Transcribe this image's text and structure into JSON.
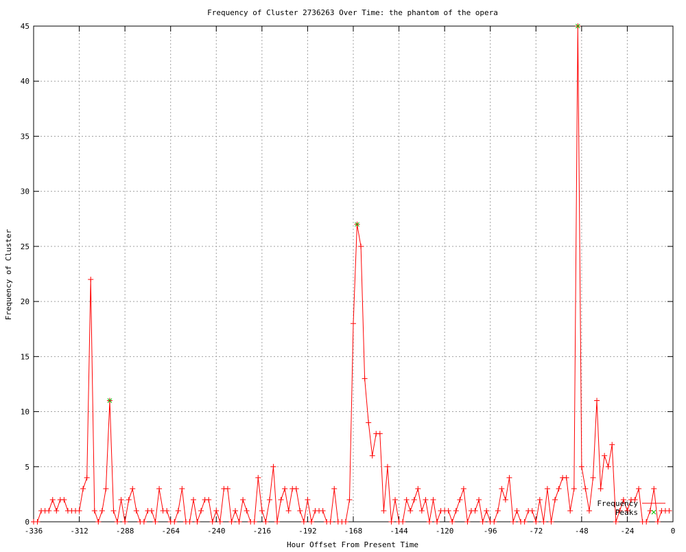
{
  "chart_data": {
    "type": "line",
    "title": "Frequency of Cluster 2736263 Over Time: the phantom of the opera",
    "xlabel": "Hour Offset From Present Time",
    "ylabel": "Frequency of Cluster",
    "xlim": [
      -336,
      0
    ],
    "ylim": [
      0,
      45
    ],
    "xticks": [
      -336,
      -312,
      -288,
      -264,
      -240,
      -216,
      -192,
      -168,
      -144,
      -120,
      -96,
      -72,
      -48,
      -24,
      0
    ],
    "yticks": [
      0,
      5,
      10,
      15,
      20,
      25,
      30,
      35,
      40,
      45
    ],
    "grid": true,
    "legend_position": "bottom-right",
    "series": [
      {
        "name": "Frequency",
        "color": "#ff0000",
        "marker": "plus",
        "x": [
          -336,
          -334,
          -332,
          -330,
          -328,
          -326,
          -324,
          -322,
          -320,
          -318,
          -316,
          -314,
          -312,
          -310,
          -308,
          -306,
          -304,
          -302,
          -300,
          -298,
          -296,
          -294,
          -292,
          -290,
          -288,
          -286,
          -284,
          -282,
          -280,
          -278,
          -276,
          -274,
          -272,
          -270,
          -268,
          -266,
          -264,
          -262,
          -260,
          -258,
          -256,
          -254,
          -252,
          -250,
          -248,
          -246,
          -244,
          -242,
          -240,
          -238,
          -236,
          -234,
          -232,
          -230,
          -228,
          -226,
          -224,
          -222,
          -220,
          -218,
          -216,
          -214,
          -212,
          -210,
          -208,
          -206,
          -204,
          -202,
          -200,
          -198,
          -196,
          -194,
          -192,
          -190,
          -188,
          -186,
          -184,
          -182,
          -180,
          -178,
          -176,
          -174,
          -172,
          -170,
          -168,
          -166,
          -164,
          -162,
          -160,
          -158,
          -156,
          -154,
          -152,
          -150,
          -148,
          -146,
          -144,
          -142,
          -140,
          -138,
          -136,
          -134,
          -132,
          -130,
          -128,
          -126,
          -124,
          -122,
          -120,
          -118,
          -116,
          -114,
          -112,
          -110,
          -108,
          -106,
          -104,
          -102,
          -100,
          -98,
          -96,
          -94,
          -92,
          -90,
          -88,
          -86,
          -84,
          -82,
          -80,
          -78,
          -76,
          -74,
          -72,
          -70,
          -68,
          -66,
          -64,
          -62,
          -60,
          -58,
          -56,
          -54,
          -52,
          -50,
          -48,
          -46,
          -44,
          -42,
          -40,
          -38,
          -36,
          -34,
          -32,
          -30,
          -28,
          -26,
          -24,
          -22,
          -20,
          -18,
          -16,
          -14,
          -12,
          -10,
          -8,
          -6,
          -4,
          -2
        ],
        "y": [
          0,
          0,
          1,
          1,
          1,
          2,
          1,
          2,
          2,
          1,
          1,
          1,
          1,
          3,
          4,
          22,
          1,
          0,
          1,
          3,
          11,
          1,
          0,
          2,
          0,
          2,
          3,
          1,
          0,
          0,
          1,
          1,
          0,
          3,
          1,
          1,
          0,
          0,
          1,
          3,
          0,
          0,
          2,
          0,
          1,
          2,
          2,
          0,
          1,
          0,
          3,
          3,
          0,
          1,
          0,
          2,
          1,
          0,
          0,
          4,
          1,
          0,
          2,
          5,
          0,
          2,
          3,
          1,
          3,
          3,
          1,
          0,
          2,
          0,
          1,
          1,
          1,
          0,
          0,
          3,
          0,
          0,
          0,
          2,
          18,
          27,
          25,
          13,
          9,
          6,
          8,
          8,
          1,
          5,
          0,
          2,
          0,
          0,
          2,
          1,
          2,
          3,
          1,
          2,
          0,
          2,
          0,
          1,
          1,
          1,
          0,
          1,
          2,
          3,
          0,
          1,
          1,
          2,
          0,
          1,
          0,
          0,
          1,
          3,
          2,
          4,
          0,
          1,
          0,
          0,
          1,
          1,
          0,
          2,
          0,
          3,
          0,
          2,
          3,
          4,
          4,
          1,
          3,
          45,
          5,
          3,
          1,
          4,
          11,
          3,
          6,
          5,
          7,
          0,
          1,
          2,
          1,
          2,
          2,
          3,
          0,
          0,
          1,
          3,
          0,
          1,
          1,
          1
        ]
      },
      {
        "name": "Peaks",
        "color": "#00c000",
        "marker": "cross",
        "x": [
          -296,
          -166,
          -50
        ],
        "y": [
          11,
          27,
          45
        ]
      }
    ]
  }
}
